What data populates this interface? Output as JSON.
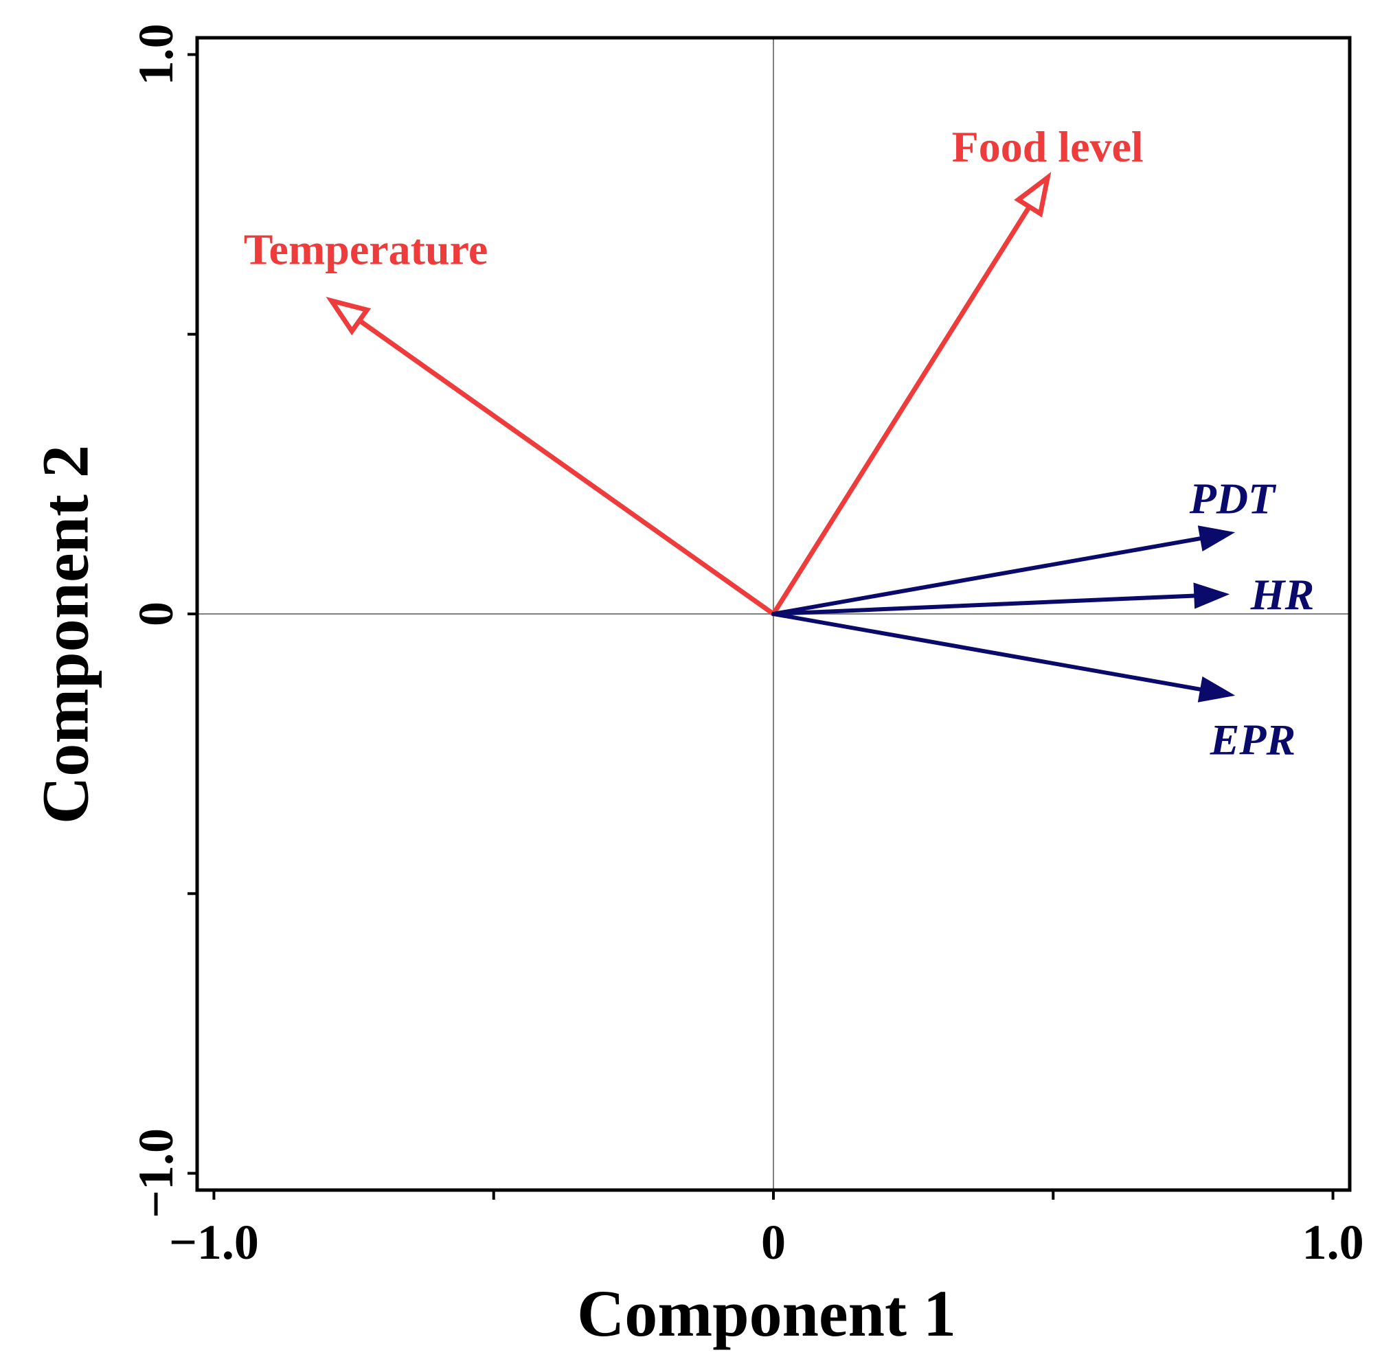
{
  "chart_data": {
    "type": "biplot",
    "xlabel": "Component 1",
    "ylabel": "Component 2",
    "xlim": [
      -1.03,
      1.03
    ],
    "ylim": [
      -1.03,
      1.03
    ],
    "x_tick_labels": [
      {
        "value": -1.0,
        "label": "−1.0"
      },
      {
        "value": 0,
        "label": "0"
      },
      {
        "value": 1.0,
        "label": "1.0"
      }
    ],
    "y_tick_labels": [
      {
        "value": -1.0,
        "label": "−1.0"
      },
      {
        "value": 0,
        "label": "0"
      },
      {
        "value": 1.0,
        "label": "1.0"
      }
    ],
    "x_minor_ticks": [
      -0.5,
      0.5
    ],
    "y_minor_ticks": [
      -0.5,
      0.5
    ],
    "origin_lines": true,
    "vectors": [
      {
        "name": "Temperature",
        "group": "explanatory",
        "x": -0.79,
        "y": 0.56,
        "color": "#ee3b3b",
        "head": "open",
        "italic": false
      },
      {
        "name": "Food level",
        "group": "explanatory",
        "x": 0.49,
        "y": 0.78,
        "color": "#ee3b3b",
        "head": "open",
        "italic": false
      },
      {
        "name": "PDT",
        "group": "response",
        "x": 0.82,
        "y": 0.145,
        "color": "#0a0a6b",
        "head": "filled",
        "italic": true
      },
      {
        "name": "HR",
        "group": "response",
        "x": 0.81,
        "y": 0.035,
        "color": "#0a0a6b",
        "head": "filled",
        "italic": true
      },
      {
        "name": "EPR",
        "group": "response",
        "x": 0.82,
        "y": -0.145,
        "color": "#0a0a6b",
        "head": "filled",
        "italic": true
      }
    ]
  }
}
